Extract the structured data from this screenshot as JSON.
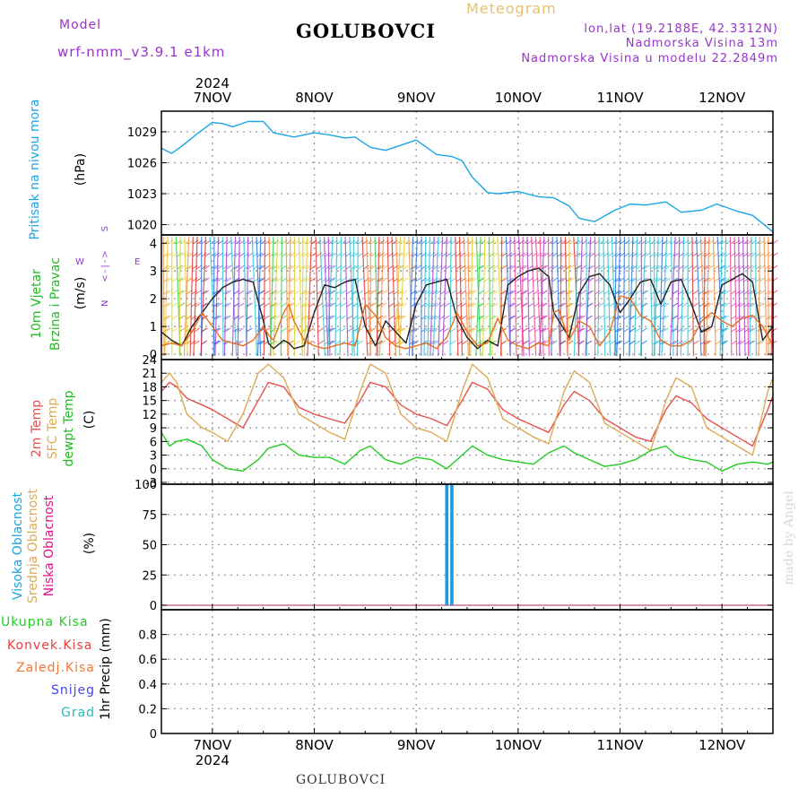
{
  "header": {
    "model_label": "Model",
    "model_name": "wrf-nmm_v3.9.1 e1km",
    "title": "GOLUBOVCI",
    "subtitle": "Meteogram",
    "lonlat": "lon,lat (19.2188E, 42.3312N)",
    "altitude": "Nadmorska Visina 13m",
    "model_altitude": "Nadmorska Visina u modelu 22.2849m",
    "footer_title": "GOLUBOVCI",
    "watermark": "made by Angel"
  },
  "colors": {
    "pressure": "#1aa5e6",
    "temp2m": "#e85050",
    "sfc_temp": "#ddaa55",
    "dewpt": "#22cc22",
    "cloud": "#1a9de0",
    "purple": "#9933cc"
  },
  "x_axis": {
    "year": "2024",
    "days": [
      "7NOV",
      "8NOV",
      "9NOV",
      "10NOV",
      "11NOV",
      "12NOV"
    ]
  },
  "panels": {
    "pressure": {
      "label": "Pritisak na nivou mora",
      "unit": "(hPa)"
    },
    "wind": {
      "label1": "10m Vjetar",
      "label2": "Brzina i Pravac",
      "unit": "(m/s)",
      "compass": {
        "n": "N",
        "w": "W",
        "e": "E",
        "s": "S"
      }
    },
    "temp": {
      "label1": "2m Temp",
      "label2": "SFC Temp",
      "label3": "dewpt Temp",
      "unit": "(C)"
    },
    "cloud": {
      "label1": "Visoka Oblacnost",
      "label2": "Srednja Oblacnost",
      "label3": "Niska Oblacnost",
      "unit": "(%)"
    },
    "precip": {
      "unit": "1hr Precip (mm)",
      "legend": [
        "Ukupna Kisa",
        "Konvek.Kisa",
        "Zaledj.Kisa",
        "Snijeg",
        "Grad"
      ]
    }
  },
  "chart_data": [
    {
      "type": "line",
      "x": [
        6.5,
        6.6,
        6.7,
        6.85,
        7.0,
        7.1,
        7.2,
        7.35,
        7.5,
        7.6,
        7.8,
        8.0,
        8.15,
        8.3,
        8.4,
        8.55,
        8.7,
        8.85,
        9.0,
        9.2,
        9.35,
        9.45,
        9.55,
        9.7,
        9.8,
        10.0,
        10.2,
        10.35,
        10.5,
        10.6,
        10.75,
        10.95,
        11.1,
        11.25,
        11.45,
        11.6,
        11.8,
        11.95,
        12.15,
        12.3,
        12.5
      ],
      "series": [
        {
          "values": [
            1027.4,
            1026.9,
            1027.6,
            1028.8,
            1029.9,
            1029.8,
            1029.5,
            1030.0,
            1030.0,
            1028.9,
            1028.5,
            1028.9,
            1028.7,
            1028.4,
            1028.5,
            1027.5,
            1027.2,
            1027.7,
            1028.2,
            1026.8,
            1026.6,
            1026.2,
            1024.6,
            1023.1,
            1023.0,
            1023.2,
            1022.7,
            1022.6,
            1021.8,
            1020.6,
            1020.3,
            1021.4,
            1022.0,
            1021.9,
            1022.2,
            1021.2,
            1021.4,
            1022.0,
            1021.3,
            1020.9,
            1019.3
          ]
        }
      ],
      "ylim": [
        1019,
        1031
      ],
      "yticks": [
        1020,
        1023,
        1026,
        1029
      ],
      "grid": true
    },
    {
      "type": "line",
      "x": [
        6.5,
        6.6,
        6.7,
        6.8,
        6.9,
        7.0,
        7.1,
        7.2,
        7.3,
        7.4,
        7.5,
        7.55,
        7.6,
        7.7,
        7.75,
        7.8,
        7.9,
        8.0,
        8.1,
        8.2,
        8.3,
        8.4,
        8.5,
        8.6,
        8.7,
        8.8,
        8.9,
        9.0,
        9.1,
        9.2,
        9.3,
        9.4,
        9.5,
        9.6,
        9.7,
        9.8,
        9.9,
        10.0,
        10.1,
        10.2,
        10.3,
        10.35,
        10.4,
        10.5,
        10.6,
        10.7,
        10.8,
        10.9,
        11.0,
        11.1,
        11.2,
        11.3,
        11.4,
        11.5,
        11.6,
        11.7,
        11.8,
        11.9,
        12.0,
        12.1,
        12.2,
        12.3,
        12.4,
        12.5
      ],
      "series": [
        {
          "values": [
            0.8,
            0.5,
            0.3,
            1.0,
            1.5,
            2.0,
            2.4,
            2.6,
            2.7,
            2.6,
            1.2,
            0.4,
            0.2,
            0.5,
            0.4,
            0.2,
            0.3,
            1.5,
            2.5,
            2.4,
            2.6,
            2.7,
            1.0,
            0.3,
            1.2,
            0.8,
            0.4,
            1.8,
            2.5,
            2.6,
            2.7,
            1.3,
            0.6,
            0.2,
            0.5,
            0.3,
            2.5,
            2.8,
            3.0,
            3.1,
            2.8,
            1.5,
            1.2,
            0.6,
            2.2,
            2.8,
            2.9,
            2.5,
            1.5,
            2.0,
            2.6,
            2.7,
            1.8,
            2.6,
            2.7,
            1.8,
            0.8,
            1.0,
            2.5,
            2.7,
            2.9,
            2.6,
            0.5,
            1.0
          ]
        },
        {
          "values": [
            0.3,
            0.4,
            0.3,
            0.8,
            1.5,
            1.0,
            0.5,
            0.4,
            0.3,
            0.5,
            1.0,
            0.7,
            0.5,
            1.5,
            1.8,
            1.2,
            0.5,
            0.3,
            0.2,
            0.3,
            0.4,
            0.3,
            1.8,
            1.4,
            0.6,
            0.3,
            0.2,
            0.3,
            0.4,
            0.2,
            0.6,
            1.5,
            0.8,
            0.3,
            0.4,
            1.3,
            0.5,
            0.3,
            0.2,
            0.4,
            0.3,
            1.5,
            1.6,
            0.5,
            1.2,
            1.0,
            0.3,
            0.8,
            2.1,
            2.0,
            1.4,
            1.2,
            0.5,
            0.3,
            0.3,
            0.5,
            1.2,
            1.5,
            1.2,
            1.0,
            1.3,
            1.4,
            1.0,
            0.3
          ]
        }
      ],
      "ylim": [
        0,
        4.3
      ],
      "yticks": [
        0,
        1,
        2,
        3,
        4
      ],
      "grid": true
    },
    {
      "type": "line",
      "x": [
        6.5,
        6.58,
        6.65,
        6.75,
        6.9,
        7.0,
        7.15,
        7.3,
        7.45,
        7.55,
        7.7,
        7.85,
        8.0,
        8.15,
        8.3,
        8.45,
        8.55,
        8.7,
        8.85,
        9.0,
        9.15,
        9.3,
        9.45,
        9.55,
        9.7,
        9.85,
        10.0,
        10.15,
        10.3,
        10.45,
        10.55,
        10.7,
        10.85,
        11.0,
        11.15,
        11.3,
        11.45,
        11.55,
        11.7,
        11.85,
        12.0,
        12.15,
        12.3,
        12.45,
        12.5
      ],
      "series": [
        {
          "values": [
            17,
            19,
            18,
            15.5,
            14,
            13,
            11,
            9,
            15,
            19,
            18,
            13.5,
            12,
            11,
            10,
            15,
            19,
            18,
            14,
            12,
            11,
            9.5,
            15,
            19,
            17.5,
            13,
            11,
            9.5,
            8,
            14,
            17,
            15,
            11,
            9,
            7,
            6,
            13,
            16,
            14.5,
            11,
            9,
            7,
            5,
            13,
            16
          ]
        },
        {
          "values": [
            19,
            21,
            19,
            12,
            9,
            8,
            6,
            12,
            21,
            23,
            20,
            12,
            10,
            8,
            6.5,
            17,
            23,
            21,
            12,
            9,
            8,
            6,
            17,
            23,
            20,
            11,
            9,
            7,
            5.5,
            17,
            21.5,
            19,
            10,
            8,
            6,
            4,
            15,
            20,
            18,
            9,
            7,
            5,
            3,
            17,
            20
          ]
        },
        {
          "values": [
            8,
            5,
            6,
            6.5,
            5,
            2,
            0,
            -0.5,
            2,
            4.5,
            5.5,
            3,
            2.5,
            2.5,
            1,
            4,
            5,
            2,
            1,
            2.5,
            2,
            0,
            3,
            5,
            3,
            2,
            1.5,
            1,
            3.5,
            5,
            3.5,
            2,
            0.5,
            1,
            2,
            4,
            5,
            3,
            2,
            1.5,
            -0.5,
            1,
            1.5,
            1,
            1.5
          ]
        }
      ],
      "ylim": [
        -3,
        24
      ],
      "yticks": [
        -3,
        0,
        3,
        6,
        9,
        12,
        15,
        18,
        21,
        24
      ],
      "grid": true
    },
    {
      "type": "bar",
      "x": [
        9.3,
        9.35
      ],
      "series": [
        {
          "values": [
            100,
            100
          ]
        }
      ],
      "ylim": [
        0,
        100
      ],
      "yticks": [
        0,
        25,
        50,
        75,
        100
      ],
      "grid": true
    },
    {
      "type": "bar",
      "x": [],
      "series": [],
      "ylim": [
        0,
        1
      ],
      "yticks": [
        0,
        0.2,
        0.4,
        0.6,
        0.8
      ],
      "grid": true
    }
  ]
}
